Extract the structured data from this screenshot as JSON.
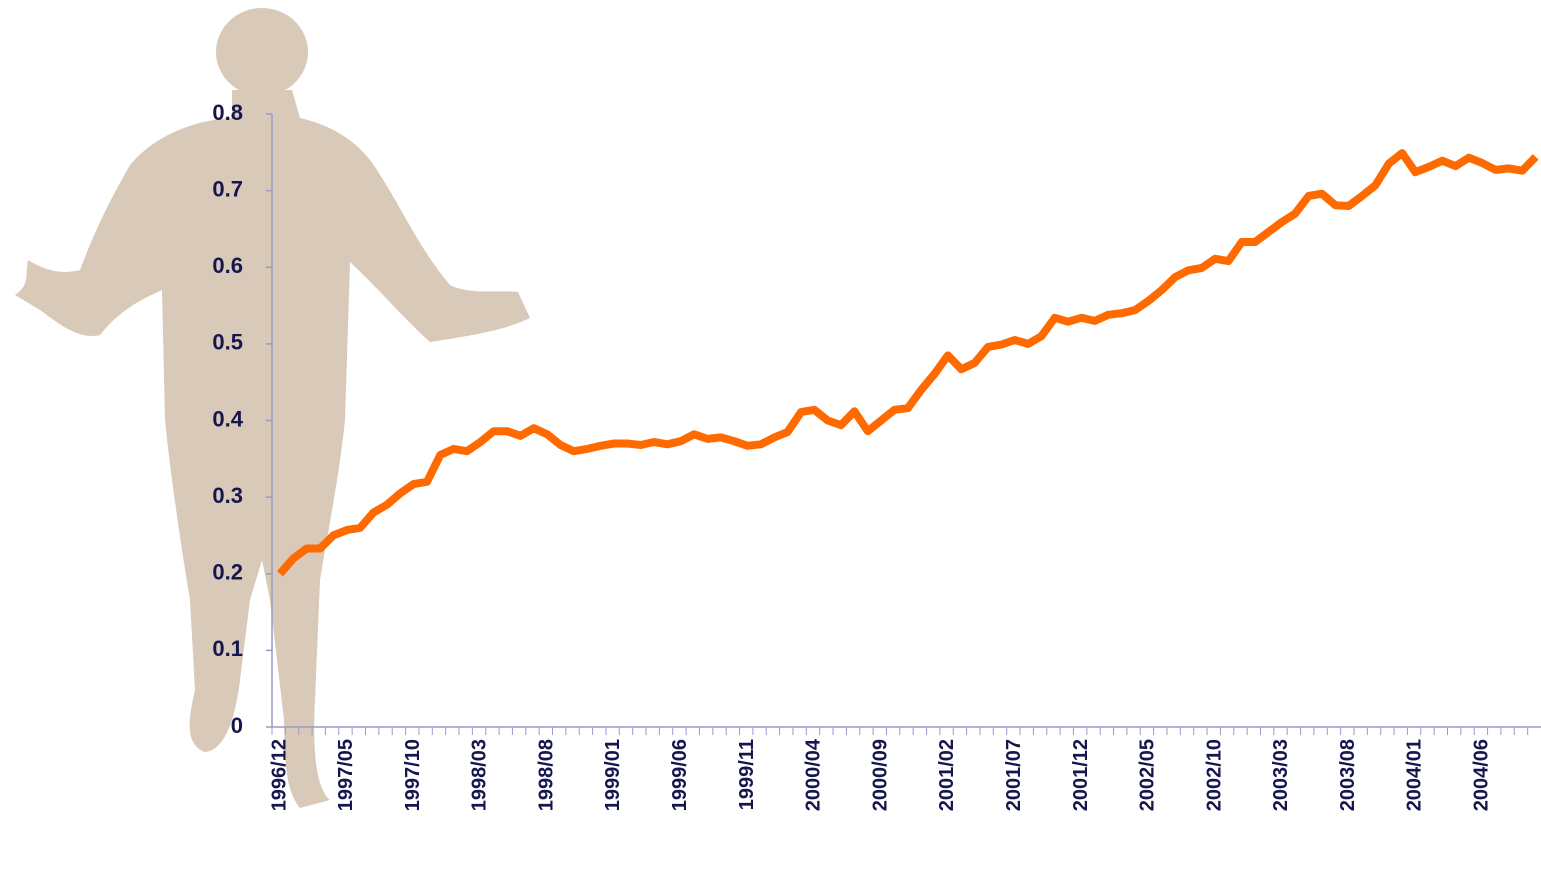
{
  "chart_data": {
    "type": "line",
    "categories": [
      "1996/12",
      null,
      null,
      null,
      null,
      "1997/05",
      null,
      null,
      null,
      null,
      "1997/10",
      null,
      null,
      null,
      null,
      "1998/03",
      null,
      null,
      null,
      null,
      "1998/08",
      null,
      null,
      null,
      null,
      "1999/01",
      null,
      null,
      null,
      null,
      "1999/06",
      null,
      null,
      null,
      null,
      "1999/11",
      null,
      null,
      null,
      null,
      "2000/04",
      null,
      null,
      null,
      null,
      "2000/09",
      null,
      null,
      null,
      null,
      "2001/02",
      null,
      null,
      null,
      null,
      "2001/07",
      null,
      null,
      null,
      null,
      "2001/12",
      null,
      null,
      null,
      null,
      "2002/05",
      null,
      null,
      null,
      null,
      "2002/10",
      null,
      null,
      null,
      null,
      "2003/03",
      null,
      null,
      null,
      null,
      "2003/08",
      null,
      null,
      null,
      null,
      "2004/01",
      null,
      null,
      null,
      null,
      "2004/06",
      null,
      null,
      null,
      null
    ],
    "values": [
      0.2,
      0.22,
      0.233,
      0.233,
      0.25,
      0.257,
      0.26,
      0.28,
      0.29,
      0.305,
      0.317,
      0.32,
      0.355,
      0.363,
      0.36,
      0.372,
      0.386,
      0.386,
      0.38,
      0.39,
      0.382,
      0.368,
      0.36,
      0.363,
      0.367,
      0.37,
      0.37,
      0.368,
      0.372,
      0.369,
      0.373,
      0.382,
      0.376,
      0.378,
      0.373,
      0.367,
      0.369,
      0.378,
      0.385,
      0.411,
      0.414,
      0.4,
      0.394,
      0.412,
      0.386,
      0.4,
      0.414,
      0.416,
      0.44,
      0.461,
      0.485,
      0.467,
      0.475,
      0.496,
      0.499,
      0.505,
      0.5,
      0.51,
      0.534,
      0.529,
      0.534,
      0.53,
      0.538,
      0.54,
      0.544,
      0.556,
      0.57,
      0.587,
      0.596,
      0.599,
      0.611,
      0.608,
      0.633,
      0.633,
      0.646,
      0.659,
      0.67,
      0.693,
      0.696,
      0.681,
      0.68,
      0.693,
      0.707,
      0.735,
      0.749,
      0.724,
      0.731,
      0.739,
      0.732,
      0.743,
      0.736,
      0.727,
      0.729,
      0.726,
      0.744
    ],
    "color": "#ff6a00",
    "ylim": [
      0,
      0.8
    ],
    "yticks": [
      0,
      0.1,
      0.2,
      0.3,
      0.4,
      0.5,
      0.6,
      0.7,
      0.8
    ],
    "grid": false
  }
}
